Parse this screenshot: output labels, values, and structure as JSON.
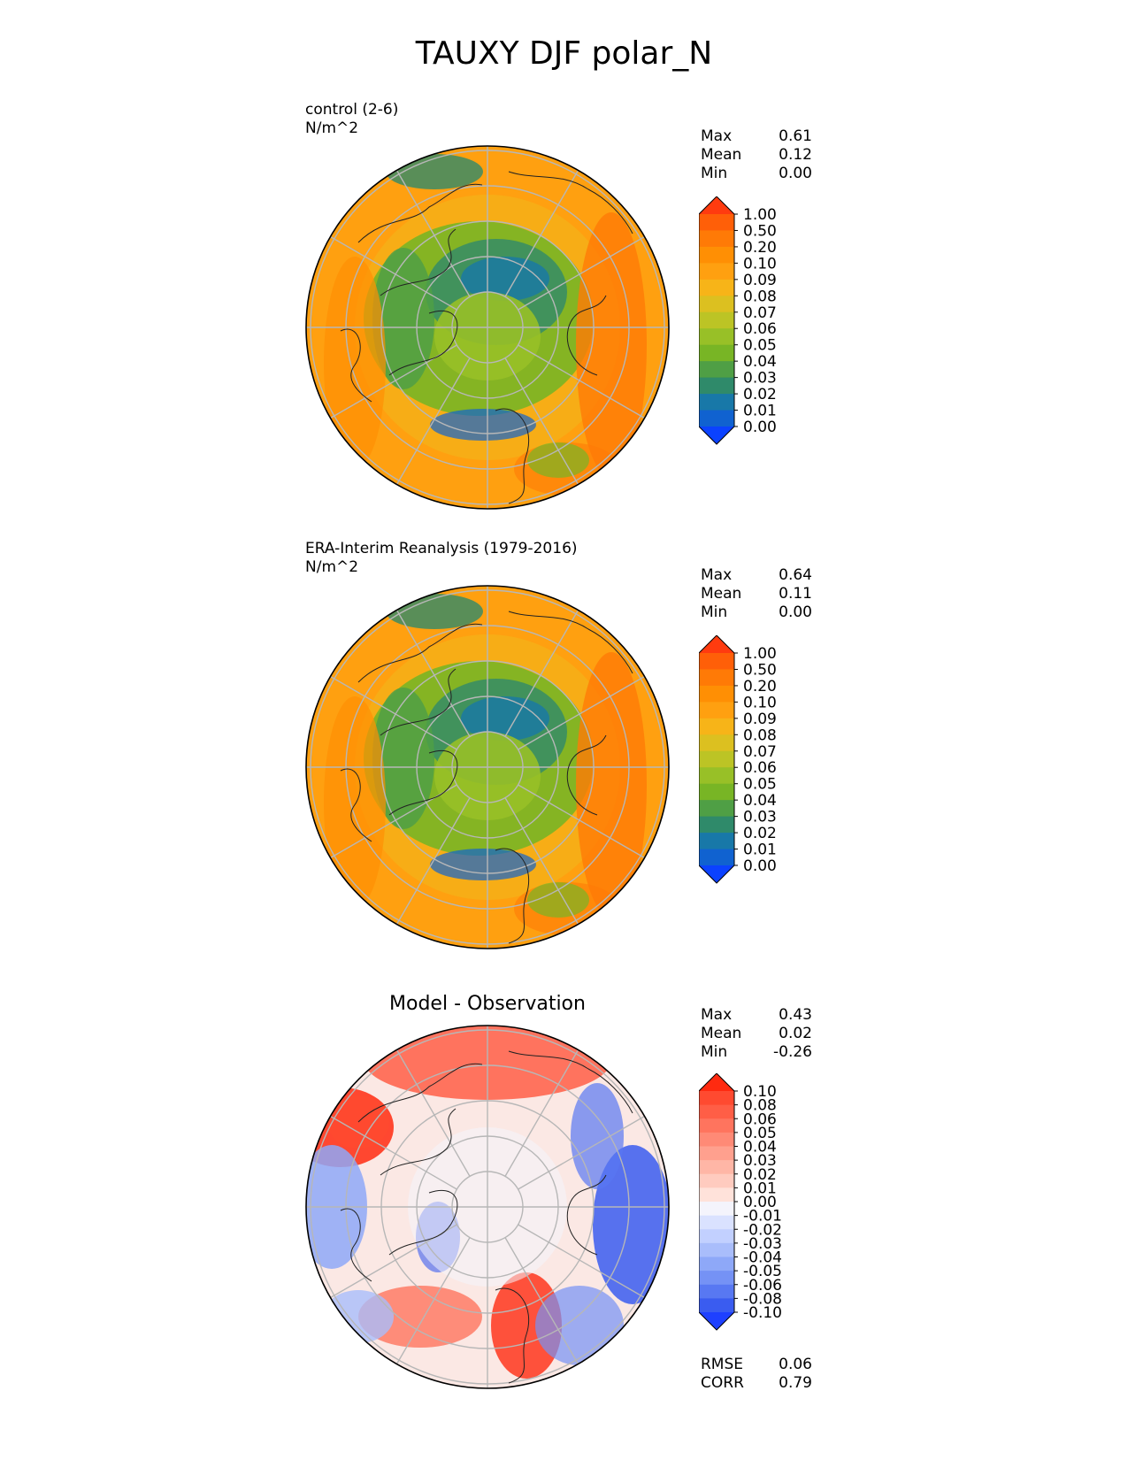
{
  "title": "TAUXY DJF polar_N",
  "panels": [
    {
      "label": "control (2-6)",
      "units": "N/m^2",
      "stats": [
        {
          "name": "Max",
          "value": "0.61"
        },
        {
          "name": "Mean",
          "value": "0.12"
        },
        {
          "name": "Min",
          "value": "0.00"
        }
      ],
      "colorbar": {
        "levels": [
          "1.00",
          "0.50",
          "0.20",
          "0.10",
          "0.09",
          "0.08",
          "0.07",
          "0.06",
          "0.05",
          "0.04",
          "0.03",
          "0.02",
          "0.01",
          "0.00"
        ],
        "colors": [
          "#ff3b0f",
          "#ff5f08",
          "#ff7a06",
          "#ff8f04",
          "#ffa010",
          "#f7b418",
          "#dcc020",
          "#bcc425",
          "#98c027",
          "#78b525",
          "#4f9f45",
          "#2f8a6a",
          "#1878a8",
          "#1062d0",
          "#0b42ff"
        ]
      }
    },
    {
      "label": "ERA-Interim Reanalysis (1979-2016)",
      "units": "N/m^2",
      "stats": [
        {
          "name": "Max",
          "value": "0.64"
        },
        {
          "name": "Mean",
          "value": "0.11"
        },
        {
          "name": "Min",
          "value": "0.00"
        }
      ],
      "colorbar": {
        "levels": [
          "1.00",
          "0.50",
          "0.20",
          "0.10",
          "0.09",
          "0.08",
          "0.07",
          "0.06",
          "0.05",
          "0.04",
          "0.03",
          "0.02",
          "0.01",
          "0.00"
        ],
        "colors": [
          "#ff3b0f",
          "#ff5f08",
          "#ff7a06",
          "#ff8f04",
          "#ffa010",
          "#f7b418",
          "#dcc020",
          "#bcc425",
          "#98c027",
          "#78b525",
          "#4f9f45",
          "#2f8a6a",
          "#1878a8",
          "#1062d0",
          "#0b42ff"
        ]
      }
    },
    {
      "label": "Model - Observation",
      "units": "",
      "stats": [
        {
          "name": "Max",
          "value": "0.43"
        },
        {
          "name": "Mean",
          "value": "0.02"
        },
        {
          "name": "Min",
          "value": "-0.26"
        }
      ],
      "extra_stats": [
        {
          "name": "RMSE",
          "value": "0.06"
        },
        {
          "name": "CORR",
          "value": "0.79"
        }
      ],
      "colorbar": {
        "levels": [
          "0.10",
          "0.08",
          "0.06",
          "0.05",
          "0.04",
          "0.03",
          "0.02",
          "0.01",
          "0.00",
          "-0.01",
          "-0.02",
          "-0.03",
          "-0.04",
          "-0.05",
          "-0.06",
          "-0.08",
          "-0.10"
        ],
        "colors": [
          "#ff2a10",
          "#ff4a30",
          "#ff5e46",
          "#ff745e",
          "#ff8a76",
          "#ffa08e",
          "#ffb6a6",
          "#ffcbbf",
          "#ffe2da",
          "#f4f4fc",
          "#dae2ff",
          "#c2d0ff",
          "#a9bdfb",
          "#8ea8f8",
          "#7592f5",
          "#5878f2",
          "#3a5cf0",
          "#1e40ff"
        ]
      }
    }
  ]
}
